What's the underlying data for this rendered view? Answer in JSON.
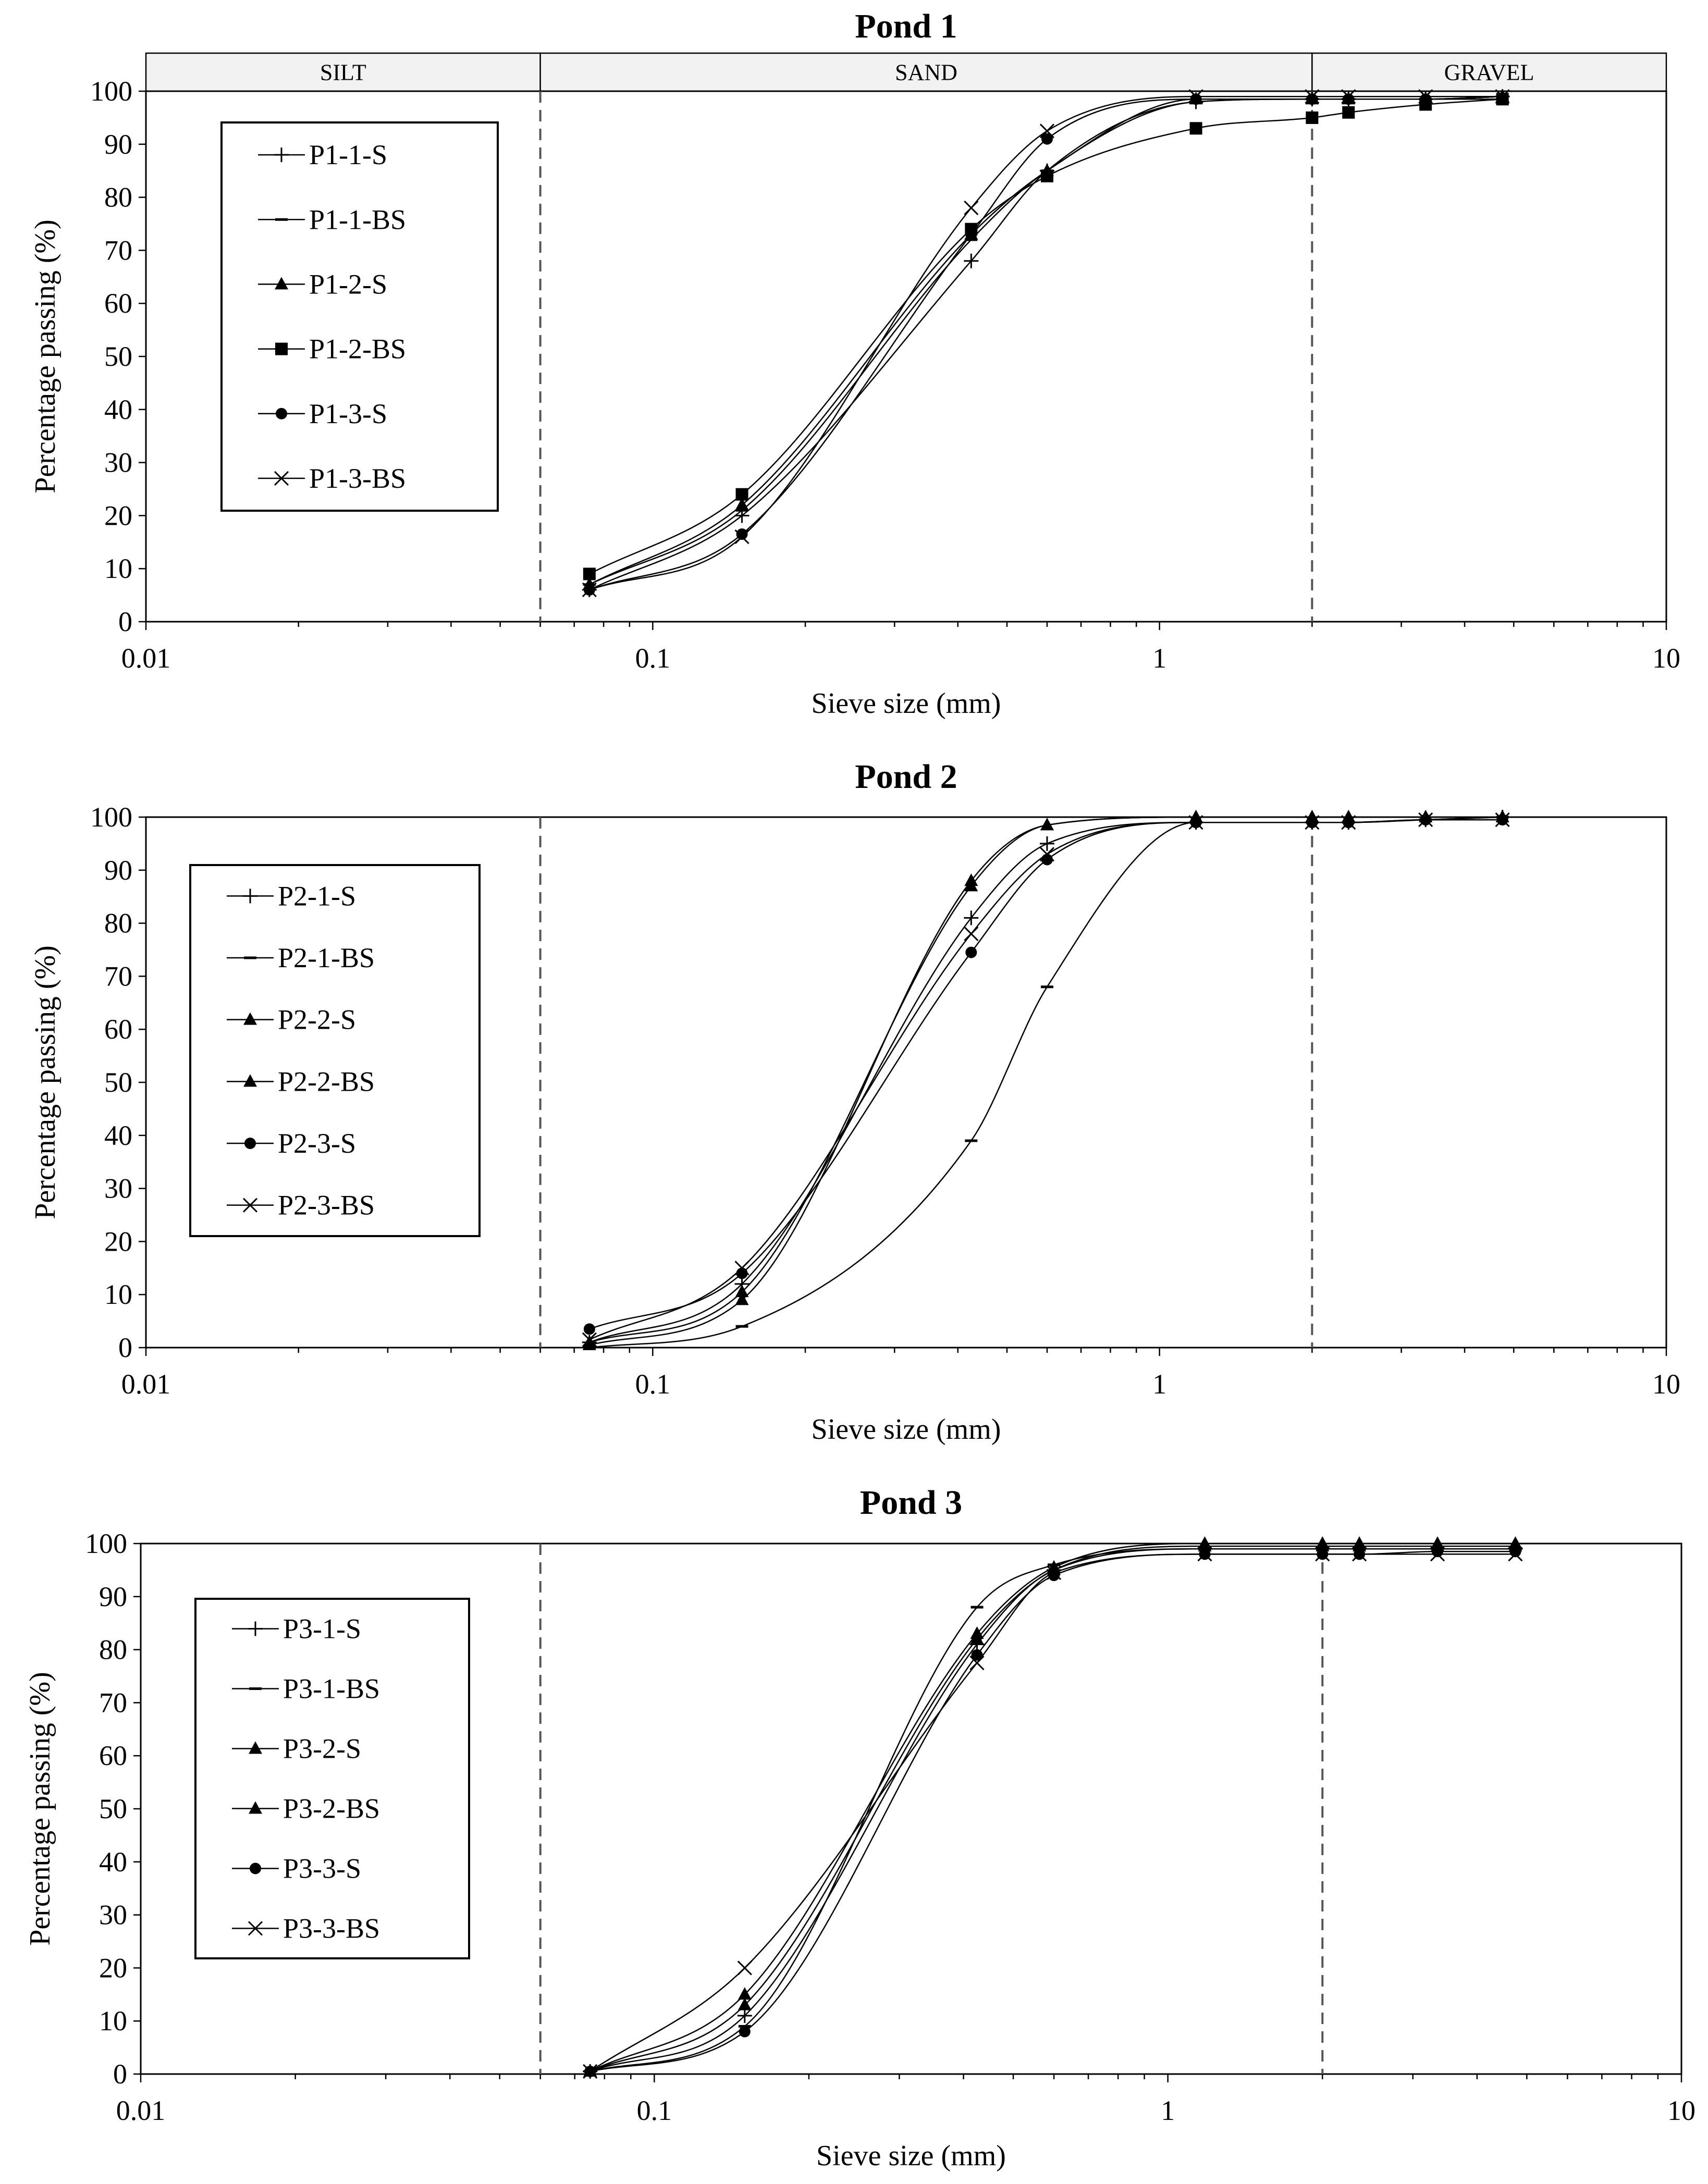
{
  "chart_data": [
    {
      "type": "line",
      "title": "Pond 1",
      "xlabel": "Sieve size (mm)",
      "ylabel": "Percentage passing (%)",
      "xscale": "log",
      "xlim": [
        0.01,
        10
      ],
      "ylim": [
        0,
        100
      ],
      "x_tick_labels": [
        "0.01",
        "0.1",
        "1",
        "10"
      ],
      "y_tick_labels": [
        "0",
        "10",
        "20",
        "30",
        "40",
        "50",
        "60",
        "70",
        "80",
        "90",
        "100"
      ],
      "boundaries": [
        0.06,
        2
      ],
      "bands": [
        {
          "label": "SILT",
          "from": 0.01,
          "to": 0.06
        },
        {
          "label": "SAND",
          "from": 0.06,
          "to": 2
        },
        {
          "label": "GRAVEL",
          "from": 2,
          "to": 10
        }
      ],
      "legend_position": "top-left",
      "series": [
        {
          "name": "P1-1-S",
          "marker": "plus",
          "x": [
            0.075,
            0.15,
            0.425,
            0.6,
            1.18,
            2.0,
            2.36,
            3.35,
            4.75
          ],
          "values": [
            6,
            20,
            68,
            85,
            98,
            98.5,
            98.5,
            98.5,
            99
          ]
        },
        {
          "name": "P1-1-BS",
          "marker": "dash",
          "x": [
            0.075,
            0.15,
            0.425,
            0.6,
            1.18,
            2.0,
            2.36,
            3.35,
            4.75
          ],
          "values": [
            7,
            21,
            72,
            85,
            98,
            98.5,
            98.5,
            98.5,
            99
          ]
        },
        {
          "name": "P1-2-S",
          "marker": "triangle",
          "x": [
            0.075,
            0.15,
            0.425,
            0.6,
            1.18,
            2.0,
            2.36,
            3.35,
            4.75
          ],
          "values": [
            7,
            22,
            73,
            85,
            98.5,
            98.5,
            98.5,
            98.5,
            99
          ]
        },
        {
          "name": "P1-2-BS",
          "marker": "square",
          "x": [
            0.075,
            0.15,
            0.425,
            0.6,
            1.18,
            2.0,
            2.36,
            3.35,
            4.75
          ],
          "values": [
            9,
            24,
            74,
            84,
            93,
            95,
            96,
            97.5,
            98.5
          ]
        },
        {
          "name": "P1-3-S",
          "marker": "circle",
          "x": [
            0.075,
            0.15,
            0.425,
            0.6,
            1.18,
            2.0,
            2.36,
            3.35,
            4.75
          ],
          "values": [
            6,
            16.5,
            73,
            91,
            98.5,
            98.5,
            98.5,
            98.5,
            98.5
          ]
        },
        {
          "name": "P1-3-BS",
          "marker": "x",
          "x": [
            0.075,
            0.15,
            0.425,
            0.6,
            1.18,
            2.0,
            2.36,
            3.35,
            4.75
          ],
          "values": [
            6,
            16,
            78,
            92.5,
            99,
            99,
            99,
            99,
            99
          ]
        }
      ]
    },
    {
      "type": "line",
      "title": "Pond 2",
      "xlabel": "Sieve size (mm)",
      "ylabel": "Percentage passing (%)",
      "xscale": "log",
      "xlim": [
        0.01,
        10
      ],
      "ylim": [
        0,
        100
      ],
      "x_tick_labels": [
        "0.01",
        "0.1",
        "1",
        "10"
      ],
      "y_tick_labels": [
        "0",
        "10",
        "20",
        "30",
        "40",
        "50",
        "60",
        "70",
        "80",
        "90",
        "100"
      ],
      "boundaries": [
        0.06,
        2
      ],
      "legend_position": "middle-left",
      "series": [
        {
          "name": "P2-1-S",
          "marker": "plus",
          "x": [
            0.075,
            0.15,
            0.425,
            0.6,
            1.18,
            2.0,
            2.36,
            3.35,
            4.75
          ],
          "values": [
            1,
            12,
            81,
            95,
            99,
            99,
            99,
            99.5,
            100
          ]
        },
        {
          "name": "P2-1-BS",
          "marker": "dash",
          "x": [
            0.075,
            0.15,
            0.425,
            0.6,
            1.18,
            2.0,
            2.36,
            3.35,
            4.75
          ],
          "values": [
            0,
            4,
            39,
            68,
            99,
            99,
            99,
            99.5,
            100
          ]
        },
        {
          "name": "P2-2-S",
          "marker": "triangle",
          "x": [
            0.075,
            0.15,
            0.425,
            0.6,
            1.18,
            2.0,
            2.36,
            3.35,
            4.75
          ],
          "values": [
            0.5,
            9,
            88,
            98.5,
            100,
            100,
            100,
            100,
            100
          ]
        },
        {
          "name": "P2-2-BS",
          "marker": "triangle",
          "x": [
            0.075,
            0.15,
            0.425,
            0.6,
            1.18,
            2.0,
            2.36,
            3.35,
            4.75
          ],
          "values": [
            1,
            10.5,
            87,
            98.5,
            100,
            100,
            100,
            100,
            100
          ]
        },
        {
          "name": "P2-3-S",
          "marker": "circle",
          "x": [
            0.075,
            0.15,
            0.425,
            0.6,
            1.18,
            2.0,
            2.36,
            3.35,
            4.75
          ],
          "values": [
            3.5,
            14,
            74.5,
            92,
            99,
            99,
            99,
            99.5,
            99.5
          ]
        },
        {
          "name": "P2-3-BS",
          "marker": "x",
          "x": [
            0.075,
            0.15,
            0.425,
            0.6,
            1.18,
            2.0,
            2.36,
            3.35,
            4.75
          ],
          "values": [
            1.5,
            15,
            78,
            93,
            99,
            99,
            99,
            99.5,
            99.5
          ]
        }
      ]
    },
    {
      "type": "line",
      "title": "Pond 3",
      "xlabel": "Sieve size (mm)",
      "ylabel": "Percentage passing (%)",
      "xscale": "log",
      "xlim": [
        0.01,
        10
      ],
      "ylim": [
        0,
        100
      ],
      "x_tick_labels": [
        "0.01",
        "0.1",
        "1",
        "10"
      ],
      "y_tick_labels": [
        "0",
        "10",
        "20",
        "30",
        "40",
        "50",
        "60",
        "70",
        "80",
        "90",
        "100"
      ],
      "boundaries": [
        0.06,
        2
      ],
      "legend_position": "top-left",
      "series": [
        {
          "name": "P3-1-S",
          "marker": "plus",
          "x": [
            0.075,
            0.15,
            0.425,
            0.6,
            1.18,
            2.0,
            2.36,
            3.35,
            4.75
          ],
          "values": [
            0.5,
            11,
            81,
            95,
            99,
            99,
            99,
            99,
            99
          ]
        },
        {
          "name": "P3-1-BS",
          "marker": "dash",
          "x": [
            0.075,
            0.15,
            0.425,
            0.6,
            1.18,
            2.0,
            2.36,
            3.35,
            4.75
          ],
          "values": [
            0.5,
            9,
            88,
            96,
            99,
            99,
            99,
            99,
            99
          ]
        },
        {
          "name": "P3-2-S",
          "marker": "triangle",
          "x": [
            0.075,
            0.15,
            0.425,
            0.6,
            1.18,
            2.0,
            2.36,
            3.35,
            4.75
          ],
          "values": [
            0.5,
            15,
            83,
            95.5,
            100,
            100,
            100,
            100,
            100
          ]
        },
        {
          "name": "P3-2-BS",
          "marker": "triangle",
          "x": [
            0.075,
            0.15,
            0.425,
            0.6,
            1.18,
            2.0,
            2.36,
            3.35,
            4.75
          ],
          "values": [
            0.5,
            13,
            82,
            95,
            99.5,
            99.5,
            99.5,
            99.5,
            99.5
          ]
        },
        {
          "name": "P3-3-S",
          "marker": "circle",
          "x": [
            0.075,
            0.15,
            0.425,
            0.6,
            1.18,
            2.0,
            2.36,
            3.35,
            4.75
          ],
          "values": [
            0.5,
            8,
            79,
            94,
            98,
            98,
            98,
            98.5,
            98.5
          ]
        },
        {
          "name": "P3-3-BS",
          "marker": "x",
          "x": [
            0.075,
            0.15,
            0.425,
            0.6,
            1.18,
            2.0,
            2.36,
            3.35,
            4.75
          ],
          "values": [
            0.5,
            20,
            77.5,
            94.5,
            98,
            98,
            98,
            98,
            98
          ]
        }
      ]
    }
  ]
}
